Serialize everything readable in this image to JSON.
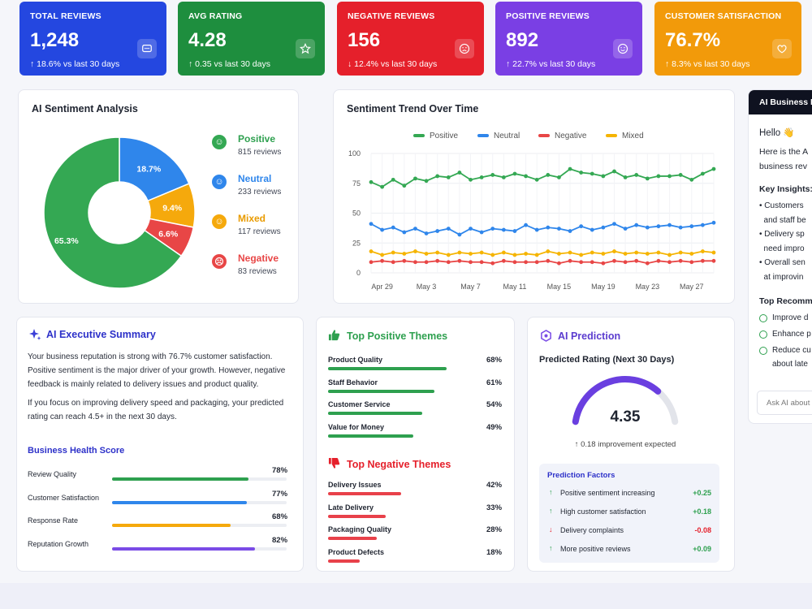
{
  "kpis": [
    {
      "title": "TOTAL REVIEWS",
      "value": "1,248",
      "change": "↑ 18.6% vs last 30 days",
      "icon": "chat-icon",
      "color": "#2447e0"
    },
    {
      "title": "AVG RATING",
      "value": "4.28",
      "change": "↑ 0.35 vs last 30 days",
      "icon": "star-icon",
      "color": "#1e8e3e"
    },
    {
      "title": "NEGATIVE REVIEWS",
      "value": "156",
      "change": "↓ 12.4% vs last 30 days",
      "icon": "sad-face-icon",
      "color": "#e5202b"
    },
    {
      "title": "POSITIVE REVIEWS",
      "value": "892",
      "change": "↑ 22.7% vs last 30 days",
      "icon": "smile-icon",
      "color": "#7a3fe4"
    },
    {
      "title": "CUSTOMER SATISFACTION",
      "value": "76.7%",
      "change": "↑ 8.3% vs last 30 days",
      "icon": "heart-icon",
      "color": "#f29a0a"
    }
  ],
  "sentiment": {
    "title": "AI Sentiment Analysis",
    "items": [
      {
        "name": "Positive",
        "count": "815 reviews",
        "percent": 65.3,
        "label": "65.3%",
        "color": "#34a853",
        "icon": "smile-icon"
      },
      {
        "name": "Neutral",
        "count": "233 reviews",
        "percent": 18.7,
        "label": "18.7%",
        "color": "#2f86eb",
        "icon": "neutral-face-icon"
      },
      {
        "name": "Mixed",
        "count": "117 reviews",
        "percent": 9.4,
        "label": "9.4%",
        "color": "#f5a90c",
        "icon": "mixed-face-icon"
      },
      {
        "name": "Negative",
        "count": "83 reviews",
        "percent": 6.6,
        "label": "6.6%",
        "color": "#e84646",
        "icon": "sad-face-icon"
      }
    ]
  },
  "trend": {
    "title": "Sentiment Trend Over Time",
    "legend": [
      "Positive",
      "Neutral",
      "Negative",
      "Mixed"
    ],
    "y_ticks": [
      "100",
      "75",
      "50",
      "25",
      "0"
    ],
    "x_ticks": [
      "Apr 29",
      "May 3",
      "May 7",
      "May 11",
      "May 15",
      "May 19",
      "May 23",
      "May 27"
    ]
  },
  "chart_data": {
    "type": "line",
    "x": [
      "Apr 28",
      "Apr 29",
      "Apr 30",
      "May 1",
      "May 2",
      "May 3",
      "May 4",
      "May 5",
      "May 6",
      "May 7",
      "May 8",
      "May 9",
      "May 10",
      "May 11",
      "May 12",
      "May 13",
      "May 14",
      "May 15",
      "May 16",
      "May 17",
      "May 18",
      "May 19",
      "May 20",
      "May 21",
      "May 22",
      "May 23",
      "May 24",
      "May 25",
      "May 26",
      "May 27",
      "May 28",
      "May 29"
    ],
    "ylim": [
      0,
      100
    ],
    "grid": true,
    "legend_position": "top",
    "series": [
      {
        "name": "Positive",
        "color": "#34a853",
        "values": [
          76,
          72,
          78,
          73,
          79,
          77,
          81,
          80,
          84,
          78,
          80,
          82,
          80,
          83,
          81,
          78,
          82,
          80,
          87,
          84,
          83,
          81,
          85,
          80,
          82,
          79,
          81,
          81,
          82,
          78,
          83,
          87
        ]
      },
      {
        "name": "Neutral",
        "color": "#2f86eb",
        "values": [
          41,
          36,
          38,
          34,
          37,
          33,
          35,
          37,
          32,
          37,
          34,
          37,
          36,
          35,
          40,
          36,
          38,
          37,
          35,
          39,
          36,
          38,
          41,
          37,
          40,
          38,
          39,
          40,
          38,
          39,
          40,
          42
        ]
      },
      {
        "name": "Negative",
        "color": "#e84646",
        "values": [
          9,
          10,
          9,
          10,
          9,
          9,
          10,
          9,
          10,
          9,
          9,
          8,
          10,
          9,
          9,
          9,
          10,
          8,
          10,
          9,
          9,
          8,
          10,
          9,
          10,
          8,
          10,
          9,
          10,
          9,
          10,
          10
        ]
      },
      {
        "name": "Mixed",
        "color": "#f5b400",
        "values": [
          18,
          15,
          17,
          16,
          18,
          16,
          17,
          15,
          17,
          16,
          17,
          15,
          17,
          15,
          16,
          15,
          18,
          16,
          17,
          15,
          17,
          16,
          18,
          16,
          17,
          16,
          17,
          15,
          17,
          16,
          18,
          17
        ]
      }
    ]
  },
  "summary": {
    "title": "AI Executive Summary",
    "p1": [
      "Your business reputation is strong with 76.7% customer satisfaction.",
      "Positive sentiment is the major driver of your growth. However, negative",
      "feedback is mainly related to delivery issues and product quality."
    ],
    "p2": [
      "If you focus on improving delivery speed and packaging, your predicted",
      "rating can reach 4.5+ in the next 30 days."
    ],
    "health_title": "Business Health Score",
    "health": [
      {
        "label": "Review Quality",
        "value": "78%",
        "fill": 0.78,
        "color": "#2ea04f"
      },
      {
        "label": "Customer Satisfaction",
        "value": "77%",
        "fill": 0.77,
        "color": "#2f86eb"
      },
      {
        "label": "Response Rate",
        "value": "68%",
        "fill": 0.68,
        "color": "#f5a90c"
      },
      {
        "label": "Reputation Growth",
        "value": "82%",
        "fill": 0.82,
        "color": "#7a4be6"
      }
    ]
  },
  "themes": {
    "positive_title": "Top Positive Themes",
    "positive": [
      {
        "label": "Product Quality",
        "value": "68%",
        "fill": 0.68
      },
      {
        "label": "Staff Behavior",
        "value": "61%",
        "fill": 0.61
      },
      {
        "label": "Customer Service",
        "value": "54%",
        "fill": 0.54
      },
      {
        "label": "Value for Money",
        "value": "49%",
        "fill": 0.49
      }
    ],
    "negative_title": "Top Negative Themes",
    "negative": [
      {
        "label": "Delivery Issues",
        "value": "42%",
        "fill": 0.42
      },
      {
        "label": "Late Delivery",
        "value": "33%",
        "fill": 0.33
      },
      {
        "label": "Packaging Quality",
        "value": "28%",
        "fill": 0.28
      },
      {
        "label": "Product Defects",
        "value": "18%",
        "fill": 0.18
      }
    ]
  },
  "prediction": {
    "title": "AI Prediction",
    "subtitle": "Predicted Rating (Next 30 Days)",
    "value": "4.35",
    "gauge_fill": 0.75,
    "improvement": "↑ 0.18 improvement expected",
    "factors_title": "Prediction Factors",
    "factors": [
      {
        "dir": "↑",
        "label": "Positive sentiment increasing",
        "value": "+0.25",
        "up": true
      },
      {
        "dir": "↑",
        "label": "High customer satisfaction",
        "value": "+0.18",
        "up": true
      },
      {
        "dir": "↓",
        "label": "Delivery complaints",
        "value": "-0.08",
        "up": false
      },
      {
        "dir": "↑",
        "label": "More positive reviews",
        "value": "+0.09",
        "up": true
      }
    ]
  },
  "chat": {
    "header": "AI Business I",
    "greeting": "Hello 👋",
    "intro": [
      "Here is the A",
      "business rev"
    ],
    "insights_title": "Key Insights:",
    "insights": [
      "• Customers",
      "  and staff be",
      "• Delivery sp",
      "  need impro",
      "• Overall sen",
      "  at improvin"
    ],
    "recs_title": "Top Recomm",
    "recs": [
      "Improve d",
      "Enhance p",
      "Reduce cu",
      "about late"
    ],
    "placeholder": "Ask AI about"
  }
}
